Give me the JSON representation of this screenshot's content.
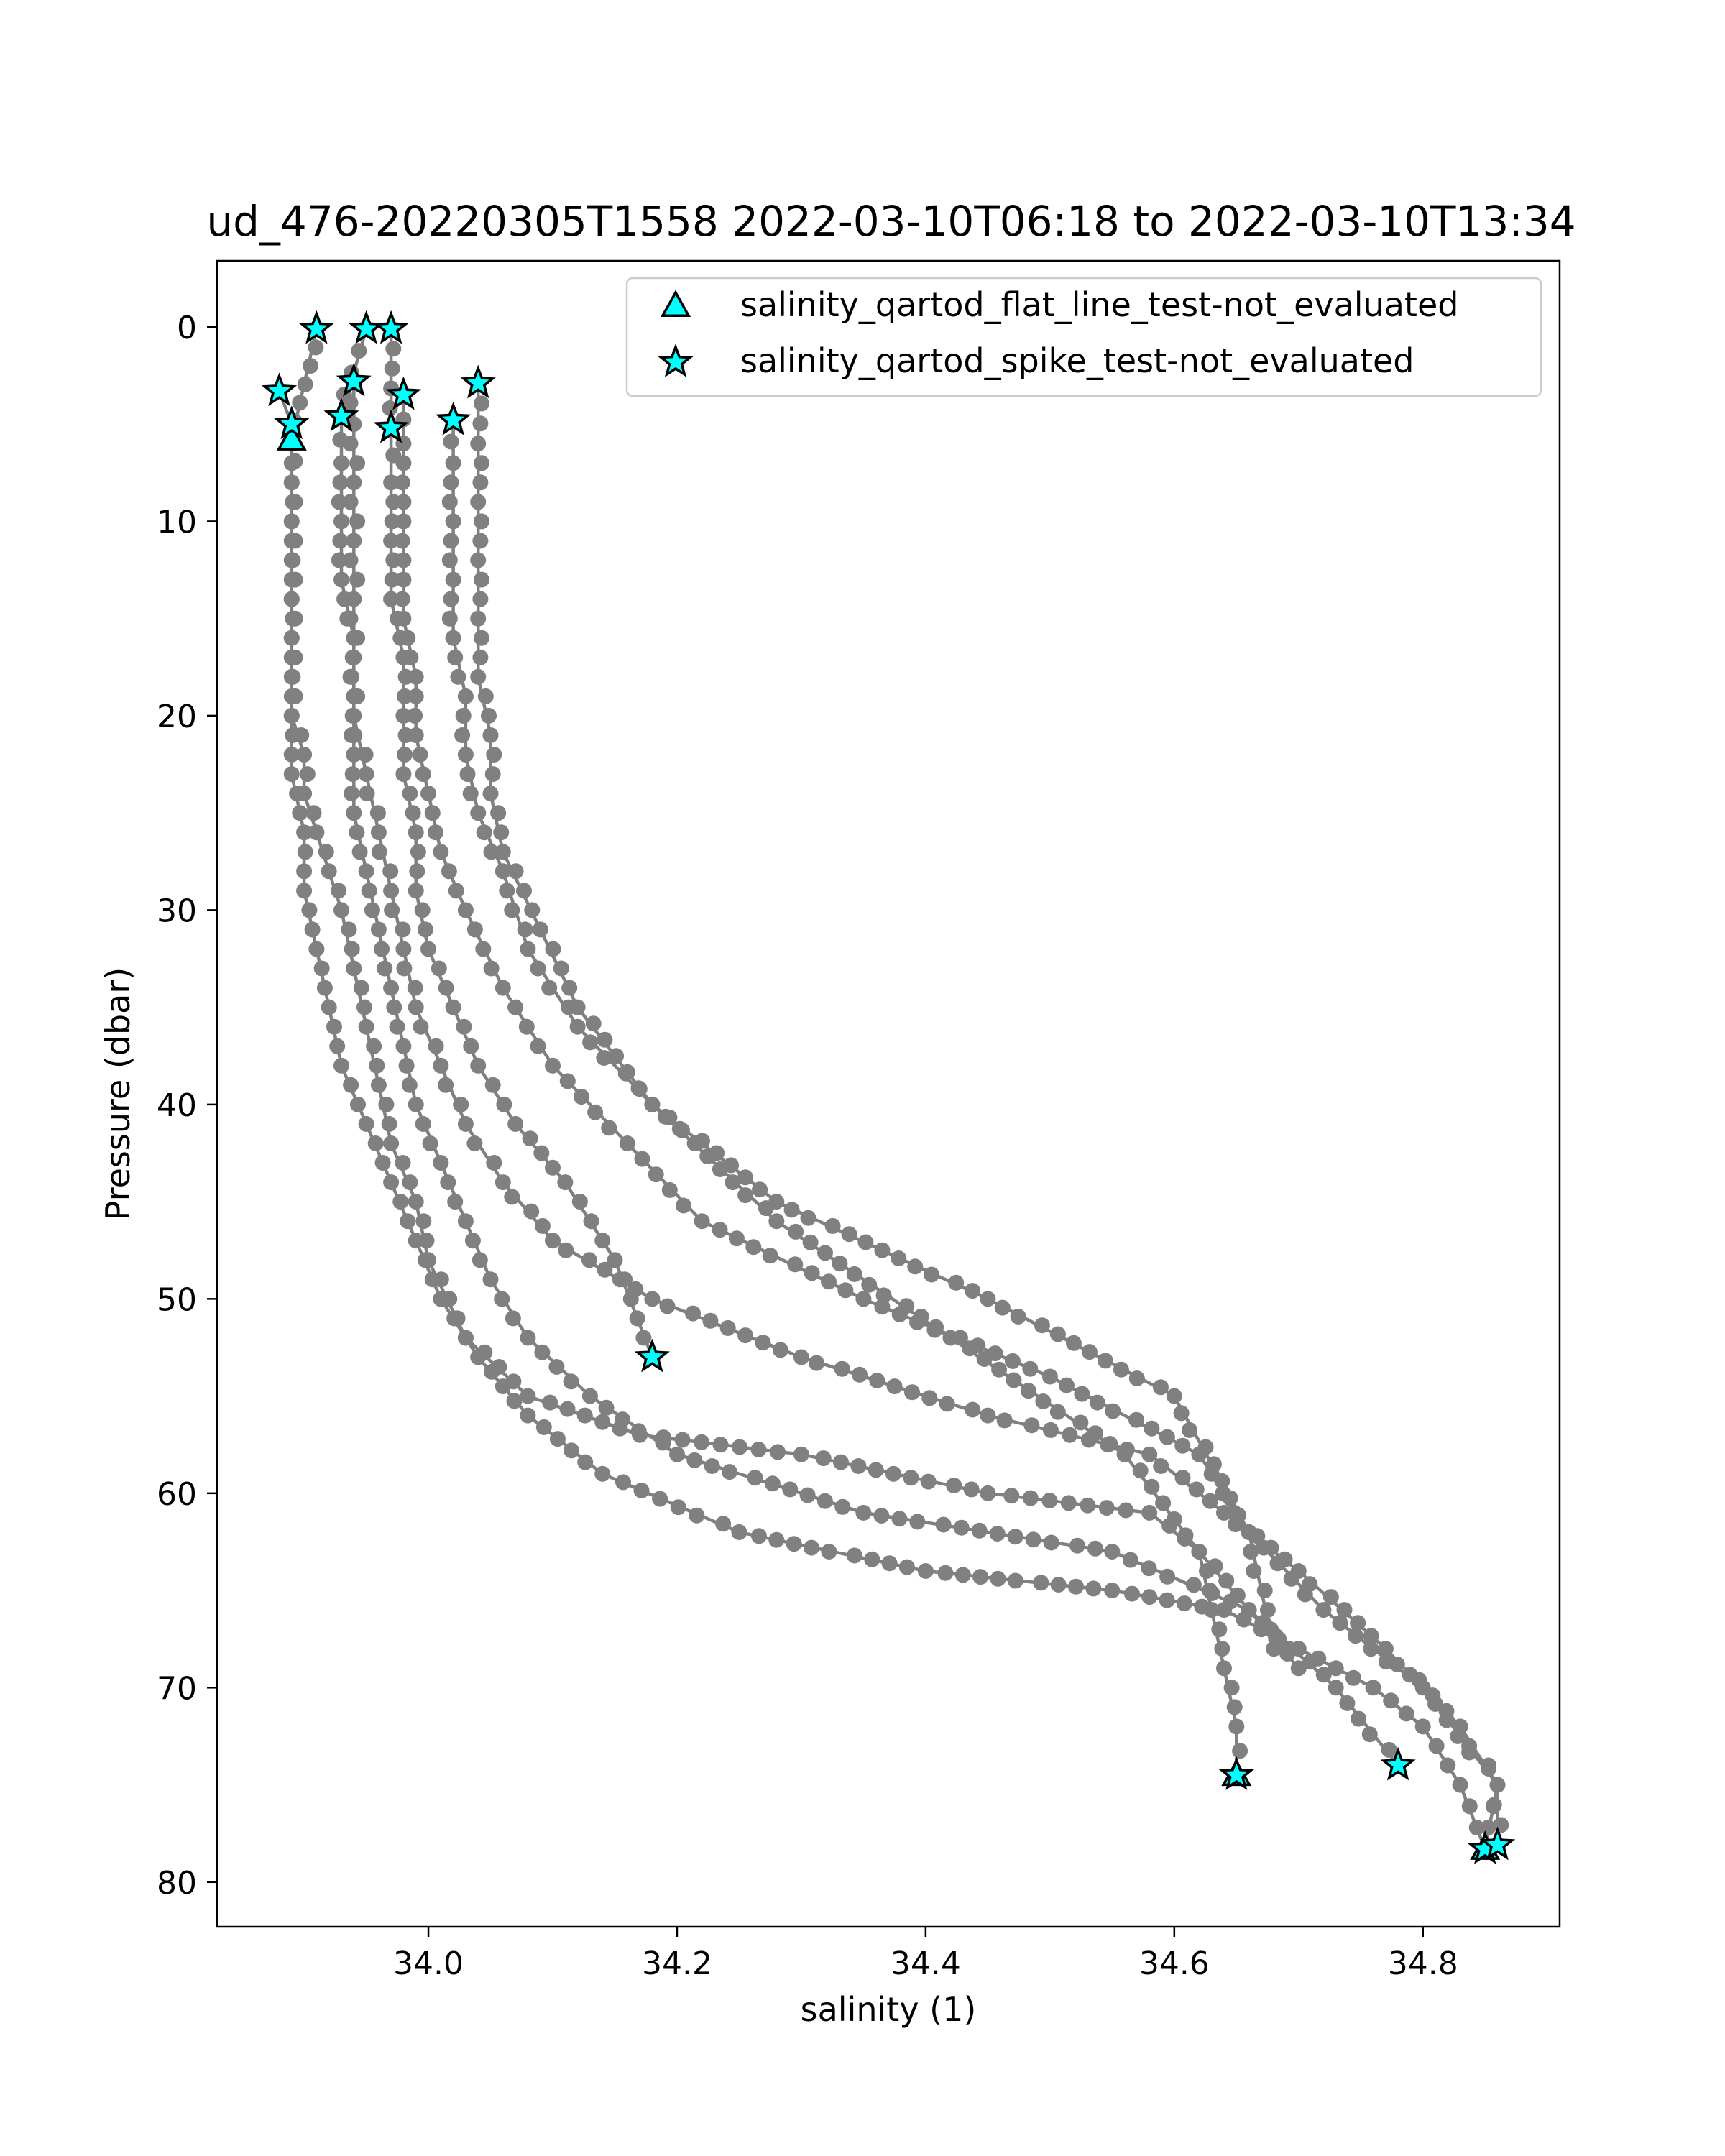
{
  "chart_data": {
    "type": "scatter",
    "title": "ud_476-20220305T1558 2022-03-10T06:18 to 2022-03-10T13:34",
    "xlabel": "salinity (1)",
    "ylabel": "Pressure (dbar)",
    "xlim": [
      33.83,
      34.91
    ],
    "ylim": [
      82.3,
      -3.4
    ],
    "y_inverted": true,
    "grid": false,
    "legend_position": "top-right",
    "x_ticks": [
      {
        "value": 34.0,
        "label": "34.0"
      },
      {
        "value": 34.2,
        "label": "34.2"
      },
      {
        "value": 34.4,
        "label": "34.4"
      },
      {
        "value": 34.6,
        "label": "34.6"
      },
      {
        "value": 34.8,
        "label": "34.8"
      }
    ],
    "y_ticks": [
      {
        "value": 0,
        "label": "0"
      },
      {
        "value": 10,
        "label": "10"
      },
      {
        "value": 20,
        "label": "20"
      },
      {
        "value": 30,
        "label": "30"
      },
      {
        "value": 40,
        "label": "40"
      },
      {
        "value": 50,
        "label": "50"
      },
      {
        "value": 60,
        "label": "60"
      },
      {
        "value": 70,
        "label": "70"
      },
      {
        "value": 80,
        "label": "80"
      }
    ],
    "colors": {
      "profile": "#808080",
      "marker_fill": "#00ffff",
      "marker_edge": "#000000"
    },
    "profiles": [
      {
        "x": [
          33.91,
          33.89,
          33.89,
          33.89,
          33.89,
          33.89,
          33.89,
          33.89,
          33.89,
          33.9,
          33.9,
          33.91,
          33.92,
          33.93,
          33.94,
          33.95,
          33.96,
          33.97,
          33.99,
          34.0,
          34.03,
          34.08,
          34.17,
          34.3,
          34.45,
          34.58,
          34.62,
          34.63,
          34.64,
          34.65,
          34.65
        ],
        "y": [
          0.1,
          5.8,
          8,
          10,
          12,
          14,
          16,
          18,
          20,
          22,
          24,
          26,
          28,
          30,
          33,
          36,
          39,
          42,
          45,
          48,
          52,
          55,
          57,
          58,
          60,
          61,
          63,
          66,
          69,
          72,
          74.5
        ]
      },
      {
        "x": [
          33.88,
          33.89,
          33.89,
          33.89,
          33.89,
          33.89,
          33.89,
          33.89,
          33.9,
          33.9,
          33.91,
          33.92,
          33.93,
          33.95,
          33.97,
          33.99,
          34.01,
          34.04,
          34.08,
          34.14,
          34.25,
          34.4,
          34.55,
          34.64,
          34.7,
          34.76,
          34.8,
          34.83,
          34.85
        ],
        "y": [
          3.3,
          5.0,
          8,
          11,
          14,
          17,
          20,
          23,
          26,
          29,
          32,
          35,
          38,
          41,
          44,
          47,
          50,
          53,
          56,
          59,
          62,
          64,
          65,
          66,
          68,
          70,
          72,
          75,
          78.3
        ]
      },
      {
        "x": [
          33.95,
          33.93,
          33.93,
          33.93,
          33.93,
          33.94,
          33.94,
          33.94,
          33.94,
          33.95,
          33.96,
          33.97,
          33.98,
          33.99,
          34.01,
          34.03,
          34.05,
          34.08,
          34.13,
          34.2,
          34.35,
          34.55,
          34.66,
          34.73,
          34.78
        ],
        "y": [
          0.1,
          4.6,
          7,
          10,
          13,
          16,
          19,
          22,
          25,
          28,
          31,
          34,
          37,
          40,
          43,
          46,
          49,
          52,
          55,
          58,
          61,
          63,
          66,
          70,
          74
        ]
      },
      {
        "x": [
          33.94,
          33.94,
          33.94,
          33.94,
          33.94,
          33.94,
          33.94,
          33.95,
          33.96,
          33.97,
          33.98,
          33.99,
          34.01,
          34.03,
          34.06,
          34.1,
          34.18,
          34.3,
          34.45,
          34.58,
          34.64,
          34.7,
          34.77,
          34.83,
          34.86,
          34.86
        ],
        "y": [
          2.8,
          5,
          8,
          11,
          14,
          17,
          20,
          23,
          26,
          29,
          32,
          35,
          38,
          41,
          44,
          47,
          50,
          53,
          56,
          58,
          61,
          64,
          68,
          72,
          75,
          78.1
        ]
      },
      {
        "x": [
          33.97,
          33.97,
          33.97,
          33.97,
          33.97,
          33.98,
          33.98,
          33.98,
          33.99,
          33.99,
          34.0,
          34.02,
          34.04,
          34.07,
          34.11,
          34.15,
          34.18
        ],
        "y": [
          0.1,
          5.2,
          8,
          11,
          14,
          17,
          20,
          23,
          26,
          29,
          32,
          35,
          38,
          41,
          44,
          48,
          53
        ]
      },
      {
        "x": [
          33.98,
          33.98,
          33.98,
          33.98,
          33.98,
          33.99,
          33.99,
          34.0,
          34.01,
          34.03,
          34.06,
          34.1,
          34.16,
          34.22,
          34.35,
          34.5,
          34.62,
          34.66,
          34.72,
          34.8,
          34.86,
          34.85
        ],
        "y": [
          3.5,
          6,
          9,
          12,
          15,
          18,
          21,
          24,
          27,
          30,
          34,
          38,
          42,
          46,
          50,
          54,
          58,
          62,
          66,
          70,
          75,
          78.3
        ]
      },
      {
        "x": [
          34.02,
          34.02,
          34.02,
          34.02,
          34.02,
          34.03,
          34.03,
          34.04,
          34.06,
          34.08,
          34.12,
          34.18,
          34.28,
          34.45,
          34.6,
          34.66,
          34.68
        ],
        "y": [
          4.8,
          7,
          10,
          13,
          16,
          19,
          22,
          25,
          28,
          32,
          36,
          40,
          45,
          50,
          55,
          62,
          68
        ]
      },
      {
        "x": [
          34.04,
          34.04,
          34.04,
          34.04,
          34.04,
          34.04,
          34.05,
          34.05,
          34.06,
          34.09,
          34.12,
          34.18,
          34.28,
          34.42,
          34.56,
          34.62,
          34.66,
          34.7
        ],
        "y": [
          2.9,
          6,
          9,
          12,
          15,
          18,
          21,
          24,
          27,
          31,
          35,
          40,
          46,
          52,
          58,
          63,
          66,
          69
        ]
      }
    ],
    "series": [
      {
        "name": "salinity_qartod_flat_line_test-not_evaluated",
        "marker": "triangle",
        "points": [
          {
            "x": 33.89,
            "y": 5.8
          },
          {
            "x": 34.65,
            "y": 74.5
          },
          {
            "x": 34.85,
            "y": 78.3
          }
        ]
      },
      {
        "name": "salinity_qartod_spike_test-not_evaluated",
        "marker": "star",
        "points": [
          {
            "x": 33.91,
            "y": 0.1
          },
          {
            "x": 33.95,
            "y": 0.1
          },
          {
            "x": 33.97,
            "y": 0.1
          },
          {
            "x": 33.88,
            "y": 3.3
          },
          {
            "x": 33.94,
            "y": 2.8
          },
          {
            "x": 33.98,
            "y": 3.5
          },
          {
            "x": 34.04,
            "y": 2.9
          },
          {
            "x": 33.89,
            "y": 5.0
          },
          {
            "x": 33.93,
            "y": 4.6
          },
          {
            "x": 33.97,
            "y": 5.2
          },
          {
            "x": 34.02,
            "y": 4.8
          },
          {
            "x": 34.18,
            "y": 53.0
          },
          {
            "x": 34.65,
            "y": 74.5
          },
          {
            "x": 34.78,
            "y": 74.0
          },
          {
            "x": 34.85,
            "y": 78.3
          },
          {
            "x": 34.86,
            "y": 78.1
          }
        ]
      }
    ]
  }
}
